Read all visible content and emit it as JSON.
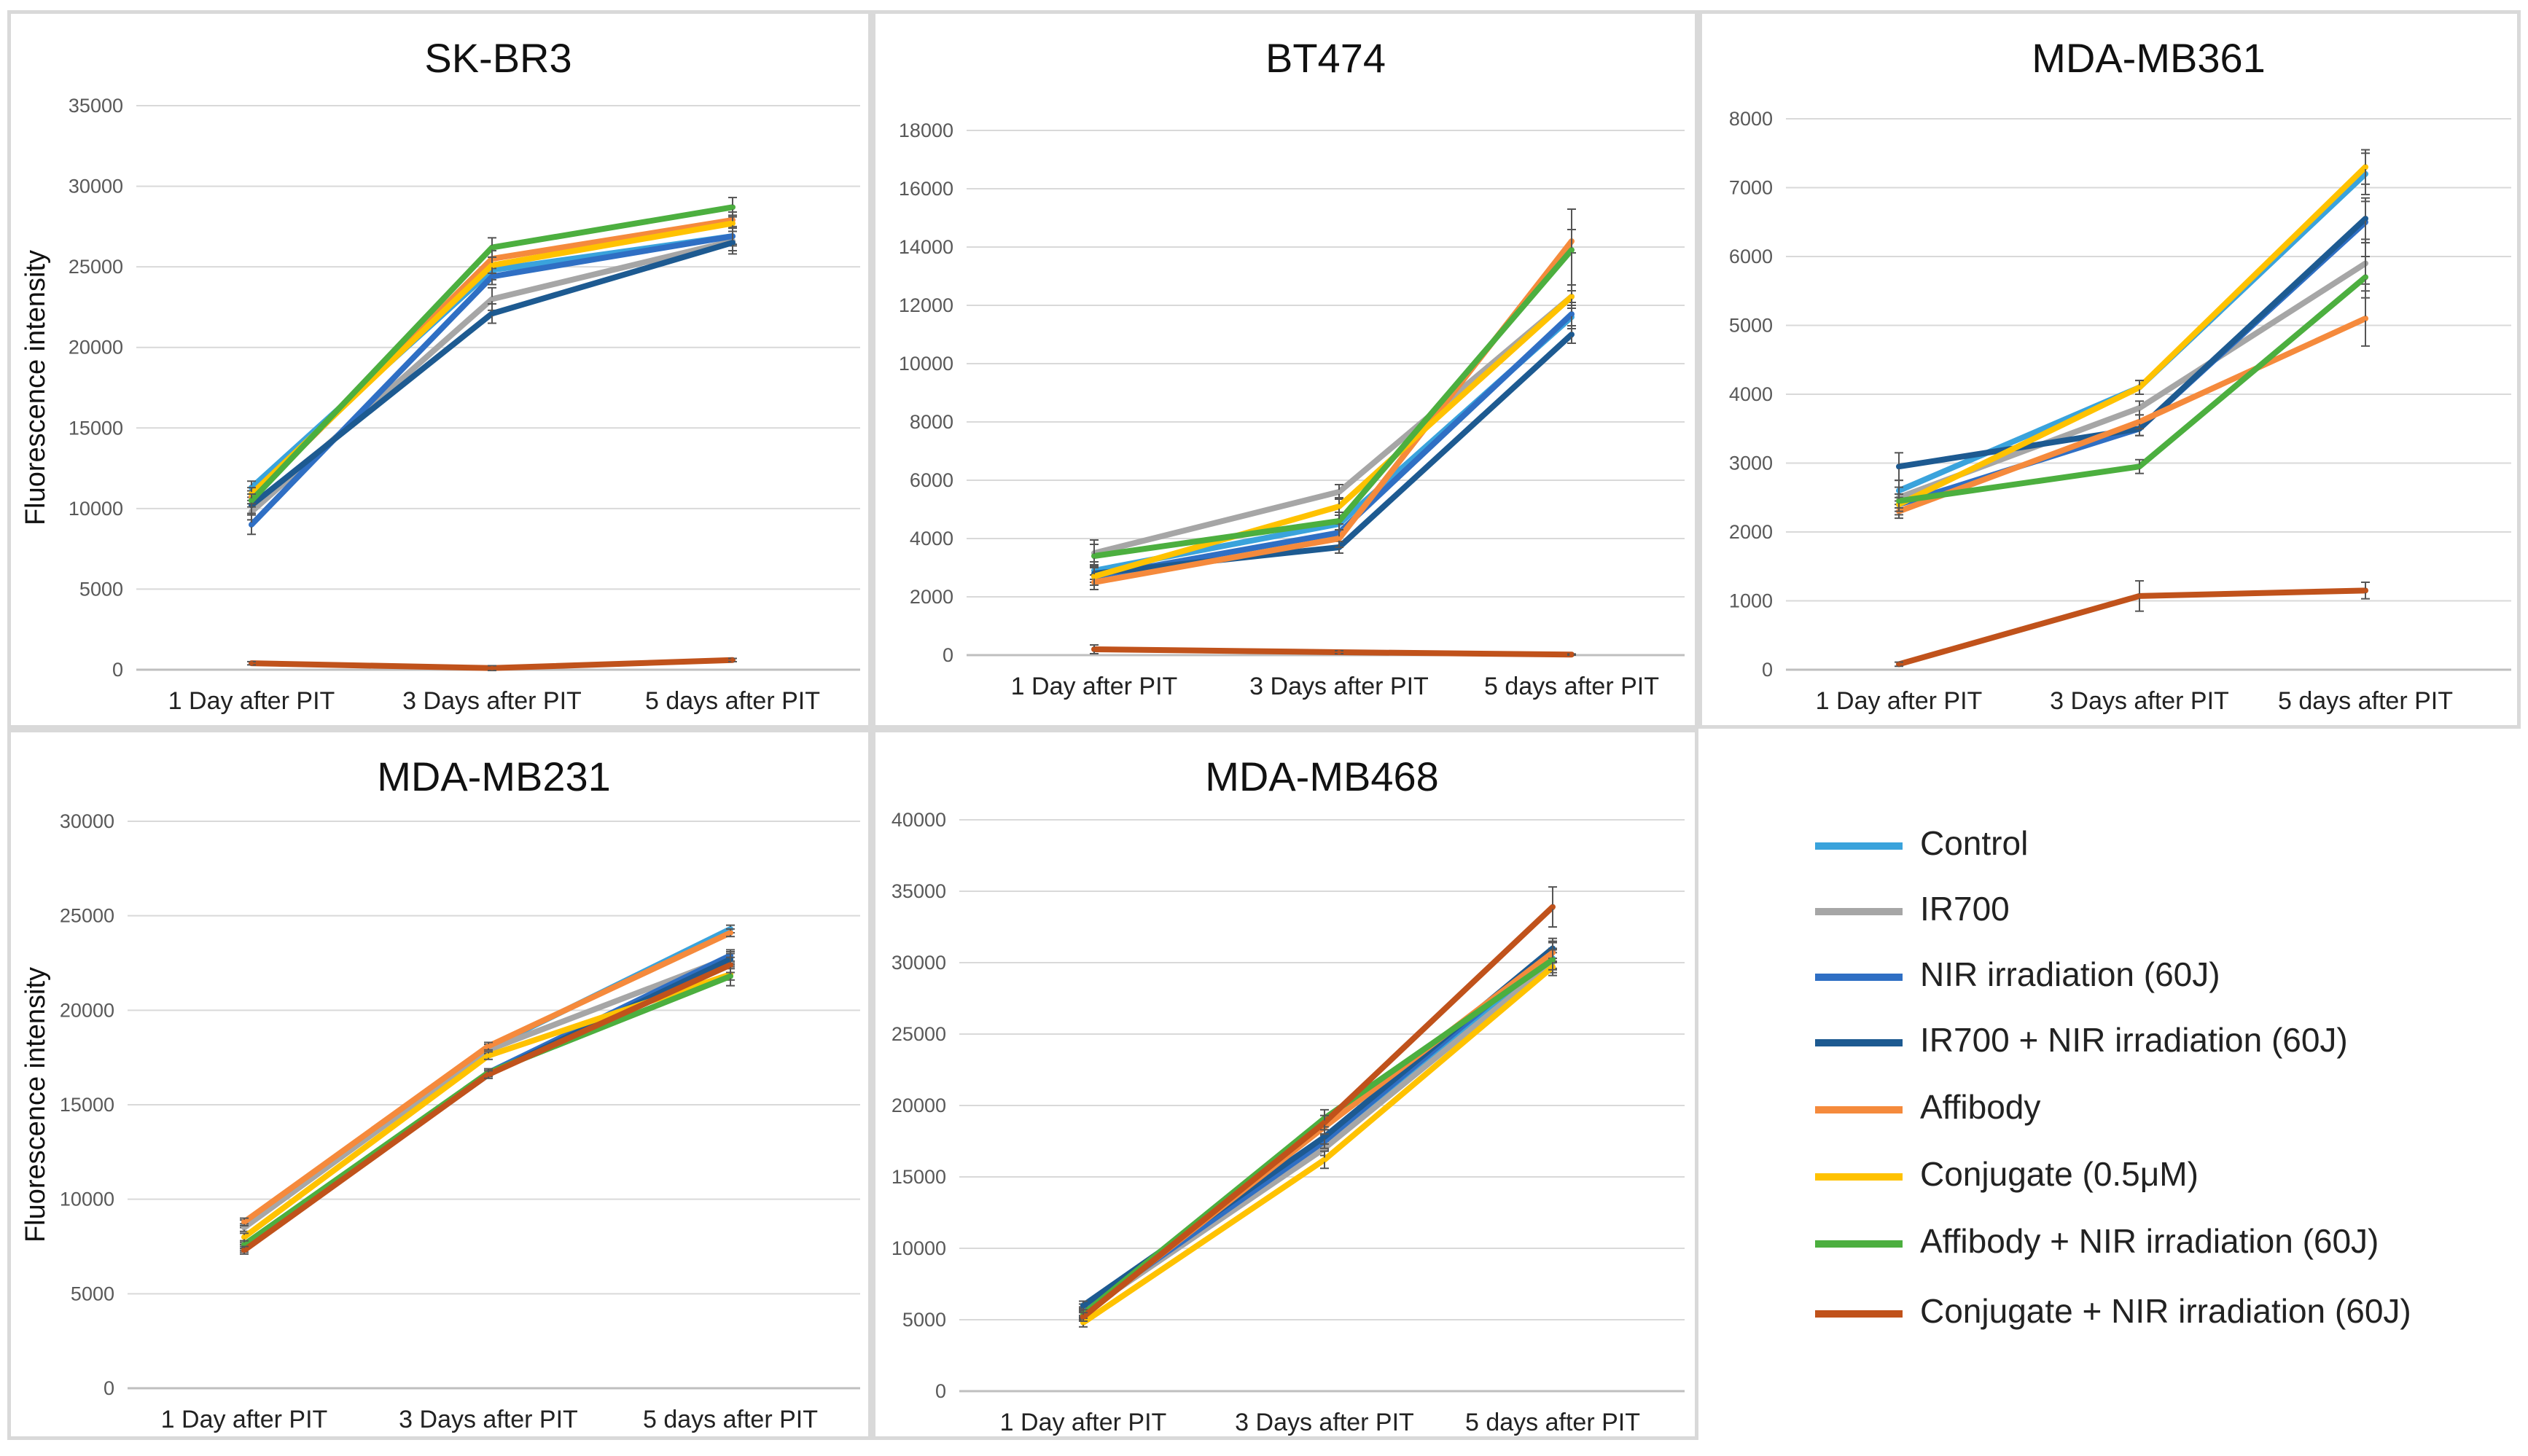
{
  "series_styles": [
    {
      "name": "Control",
      "color": "#3aa3dc"
    },
    {
      "name": "IR700",
      "color": "#a6a6a6"
    },
    {
      "name": "NIR irradiation (60J)",
      "color": "#2f6fc4"
    },
    {
      "name": "IR700 + NIR irradiation (60J)",
      "color": "#1d5a91"
    },
    {
      "name": "Affibody",
      "color": "#f58a3c"
    },
    {
      "name": "Conjugate (0.5μM)",
      "color": "#ffc200"
    },
    {
      "name": "Affibody + NIR irradiation (60J)",
      "color": "#4caf3f"
    },
    {
      "name": "Conjugate + NIR irradiation (60J)",
      "color": "#c0521b"
    }
  ],
  "chart_data": [
    {
      "id": "skbr3",
      "type": "line",
      "title": "SK-BR3",
      "ylabel": "Fluorescence intensity",
      "categories": [
        "1 Day after PIT",
        "3 Days after PIT",
        "5 days after PIT"
      ],
      "ylim": [
        0,
        35000
      ],
      "yticks": [
        0,
        5000,
        10000,
        15000,
        20000,
        25000,
        30000,
        35000
      ],
      "series": [
        {
          "name": "Control",
          "values": [
            11300,
            24800,
            26900
          ],
          "err": [
            400,
            600,
            500
          ]
        },
        {
          "name": "IR700",
          "values": [
            9800,
            23000,
            26600
          ],
          "err": [
            500,
            700,
            600
          ]
        },
        {
          "name": "NIR irradiation (60J)",
          "values": [
            9000,
            24400,
            26900
          ],
          "err": [
            600,
            500,
            600
          ]
        },
        {
          "name": "IR700 + NIR irradiation (60J)",
          "values": [
            10200,
            22100,
            26500
          ],
          "err": [
            500,
            600,
            700
          ]
        },
        {
          "name": "Affibody",
          "values": [
            10700,
            25500,
            27900
          ],
          "err": [
            400,
            500,
            500
          ]
        },
        {
          "name": "Conjugate (0.5μM)",
          "values": [
            10900,
            25100,
            27700
          ],
          "err": [
            400,
            500,
            500
          ]
        },
        {
          "name": "Affibody + NIR irradiation (60J)",
          "values": [
            10500,
            26200,
            28700
          ],
          "err": [
            400,
            600,
            600
          ]
        },
        {
          "name": "Conjugate + NIR irradiation (60J)",
          "values": [
            400,
            100,
            600
          ],
          "err": [
            100,
            150,
            100
          ]
        }
      ]
    },
    {
      "id": "bt474",
      "type": "line",
      "title": "BT474",
      "ylabel": "",
      "categories": [
        "1 Day after PIT",
        "3 Days after PIT",
        "5 days after PIT"
      ],
      "ylim": [
        0,
        18000
      ],
      "yticks": [
        0,
        2000,
        4000,
        6000,
        8000,
        10000,
        12000,
        14000,
        16000,
        18000
      ],
      "series": [
        {
          "name": "Control",
          "values": [
            2900,
            4500,
            11600
          ],
          "err": [
            300,
            300,
            400
          ]
        },
        {
          "name": "IR700",
          "values": [
            3500,
            5600,
            12300
          ],
          "err": [
            450,
            250,
            400
          ]
        },
        {
          "name": "NIR irradiation (60J)",
          "values": [
            2700,
            4200,
            11700
          ],
          "err": [
            300,
            300,
            400
          ]
        },
        {
          "name": "IR700 + NIR irradiation (60J)",
          "values": [
            2800,
            3700,
            11000
          ],
          "err": [
            300,
            200,
            300
          ]
        },
        {
          "name": "Affibody",
          "values": [
            2500,
            4000,
            14200
          ],
          "err": [
            250,
            300,
            400
          ]
        },
        {
          "name": "Conjugate (0.5μM)",
          "values": [
            2700,
            5100,
            12300
          ],
          "err": [
            300,
            300,
            400
          ]
        },
        {
          "name": "Affibody + NIR irradiation (60J)",
          "values": [
            3400,
            4600,
            13900
          ],
          "err": [
            400,
            300,
            1400
          ]
        },
        {
          "name": "Conjugate + NIR irradiation (60J)",
          "values": [
            200,
            100,
            20
          ],
          "err": [
            150,
            50,
            20
          ]
        }
      ]
    },
    {
      "id": "mdamb361",
      "type": "line",
      "title": "MDA-MB361",
      "ylabel": "",
      "categories": [
        "1 Day after PIT",
        "3 Days after PIT",
        "5 days after PIT"
      ],
      "ylim": [
        0,
        8000
      ],
      "yticks": [
        0,
        1000,
        2000,
        3000,
        4000,
        5000,
        6000,
        7000,
        8000
      ],
      "series": [
        {
          "name": "Control",
          "values": [
            2600,
            4100,
            7200
          ],
          "err": [
            150,
            100,
            300
          ]
        },
        {
          "name": "IR700",
          "values": [
            2500,
            3800,
            5900
          ],
          "err": [
            150,
            100,
            300
          ]
        },
        {
          "name": "NIR irradiation (60J)",
          "values": [
            2400,
            3500,
            6500
          ],
          "err": [
            150,
            100,
            300
          ]
        },
        {
          "name": "IR700 + NIR irradiation (60J)",
          "values": [
            2950,
            3500,
            6550
          ],
          "err": [
            200,
            100,
            300
          ]
        },
        {
          "name": "Affibody",
          "values": [
            2300,
            3600,
            5100
          ],
          "err": [
            100,
            100,
            400
          ]
        },
        {
          "name": "Conjugate (0.5μM)",
          "values": [
            2400,
            4100,
            7300
          ],
          "err": [
            100,
            100,
            250
          ]
        },
        {
          "name": "Affibody + NIR irradiation (60J)",
          "values": [
            2450,
            2950,
            5700
          ],
          "err": [
            100,
            100,
            300
          ]
        },
        {
          "name": "Conjugate + NIR irradiation (60J)",
          "values": [
            80,
            1070,
            1150
          ],
          "err": [
            30,
            220,
            120
          ]
        }
      ]
    },
    {
      "id": "mdamb231",
      "type": "line",
      "title": "MDA-MB231",
      "ylabel": "Fluorescence intensity",
      "categories": [
        "1 Day after PIT",
        "3 Days after PIT",
        "5 days after PIT"
      ],
      "ylim": [
        0,
        30000
      ],
      "yticks": [
        0,
        5000,
        10000,
        15000,
        20000,
        25000,
        30000
      ],
      "series": [
        {
          "name": "Control",
          "values": [
            8700,
            18000,
            24300
          ],
          "err": [
            200,
            200,
            200
          ]
        },
        {
          "name": "IR700",
          "values": [
            8500,
            17900,
            22800
          ],
          "err": [
            200,
            200,
            300
          ]
        },
        {
          "name": "NIR irradiation (60J)",
          "values": [
            7500,
            16700,
            22900
          ],
          "err": [
            200,
            200,
            300
          ]
        },
        {
          "name": "IR700 + NIR irradiation (60J)",
          "values": [
            7400,
            16600,
            22700
          ],
          "err": [
            200,
            200,
            300
          ]
        },
        {
          "name": "Affibody",
          "values": [
            8800,
            18100,
            24100
          ],
          "err": [
            200,
            200,
            200
          ]
        },
        {
          "name": "Conjugate (0.5μM)",
          "values": [
            8000,
            17600,
            21900
          ],
          "err": [
            200,
            200,
            300
          ]
        },
        {
          "name": "Affibody + NIR irradiation (60J)",
          "values": [
            7600,
            16700,
            21800
          ],
          "err": [
            200,
            200,
            500
          ]
        },
        {
          "name": "Conjugate + NIR irradiation (60J)",
          "values": [
            7300,
            16600,
            22400
          ],
          "err": [
            200,
            200,
            400
          ]
        }
      ]
    },
    {
      "id": "mdamb468",
      "type": "line",
      "title": "MDA-MB468",
      "ylabel": "",
      "categories": [
        "1 Day after PIT",
        "3 Days after PIT",
        "5 days after PIT"
      ],
      "ylim": [
        0,
        40000
      ],
      "yticks": [
        0,
        5000,
        10000,
        15000,
        20000,
        25000,
        30000,
        35000,
        40000
      ],
      "series": [
        {
          "name": "Control",
          "values": [
            5800,
            17400,
            30300
          ],
          "err": [
            300,
            500,
            700
          ]
        },
        {
          "name": "IR700",
          "values": [
            5500,
            17000,
            30000
          ],
          "err": [
            300,
            500,
            700
          ]
        },
        {
          "name": "NIR irradiation (60J)",
          "values": [
            5600,
            17500,
            30800
          ],
          "err": [
            300,
            500,
            700
          ]
        },
        {
          "name": "IR700 + NIR irradiation (60J)",
          "values": [
            6000,
            17800,
            31000
          ],
          "err": [
            300,
            500,
            700
          ]
        },
        {
          "name": "Affibody",
          "values": [
            5300,
            18500,
            30700
          ],
          "err": [
            300,
            500,
            700
          ]
        },
        {
          "name": "Conjugate (0.5μM)",
          "values": [
            4800,
            16200,
            29700
          ],
          "err": [
            300,
            600,
            600
          ]
        },
        {
          "name": "Affibody + NIR irradiation (60J)",
          "values": [
            5400,
            19100,
            30200
          ],
          "err": [
            300,
            600,
            700
          ]
        },
        {
          "name": "Conjugate + NIR irradiation (60J)",
          "values": [
            5200,
            18800,
            33900
          ],
          "err": [
            300,
            500,
            1400
          ]
        }
      ]
    }
  ]
}
